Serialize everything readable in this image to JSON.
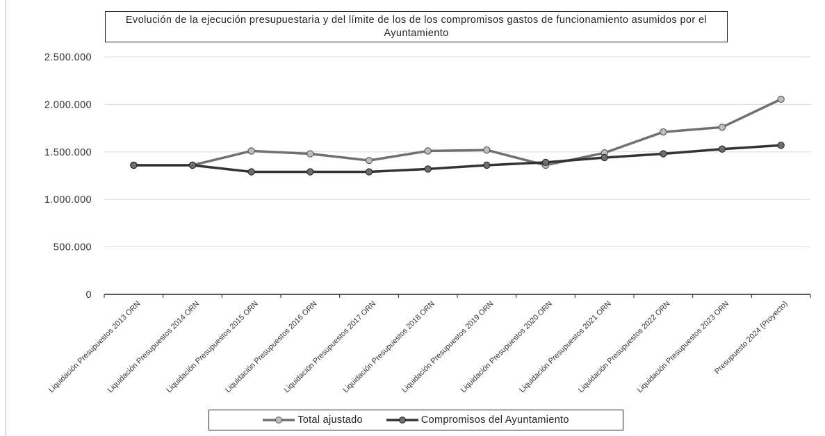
{
  "chart_data": {
    "type": "line",
    "title": "Evolución de la ejecución presupuestaria y del límite de los de los compromisos gastos de funcionamiento asumidos por el Ayuntamiento",
    "categories": [
      "Liquidación Presupuestos 2013 ORN",
      "Liquidación Presupuestos 2014 ORN",
      "Liquidación Presupuestos 2015 ORN",
      "Liquidación Presupuestos 2016 ORN",
      "Liquidación Presupuestos 2017 ORN",
      "Liquidación Presupuestos 2018 ORN",
      "Liquidación Presupuestos 2019 ORN",
      "Liquidación Presupuestos 2020 ORN",
      "Liquidación Presupuestos 2021 ORN",
      "Liquidación Presupuestos 2022 ORN",
      "Liquidación Presupuestos 2023 ORN",
      "Presupuesto 2024 (Proyecto)"
    ],
    "series": [
      {
        "name": "Total ajustado",
        "color": "#707070",
        "marker_fill": "#bdbdbd",
        "values": [
          1360000,
          1360000,
          1510000,
          1480000,
          1410000,
          1510000,
          1520000,
          1360000,
          1490000,
          1710000,
          1760000,
          2055000
        ]
      },
      {
        "name": "Compromisos del Ayuntamiento",
        "color": "#333333",
        "marker_fill": "#6e6e6e",
        "values": [
          1360000,
          1360000,
          1290000,
          1290000,
          1290000,
          1320000,
          1360000,
          1390000,
          1440000,
          1480000,
          1530000,
          1570000
        ]
      }
    ],
    "yticks": [
      "0",
      "500.000",
      "1.000.000",
      "1.500.000",
      "2.000.000",
      "2.500.000"
    ],
    "ytick_values": [
      0,
      500000,
      1000000,
      1500000,
      2000000,
      2500000
    ],
    "ylim": [
      0,
      2500000
    ],
    "grid": true,
    "legend_position": "bottom",
    "xlabel": "",
    "ylabel": ""
  }
}
